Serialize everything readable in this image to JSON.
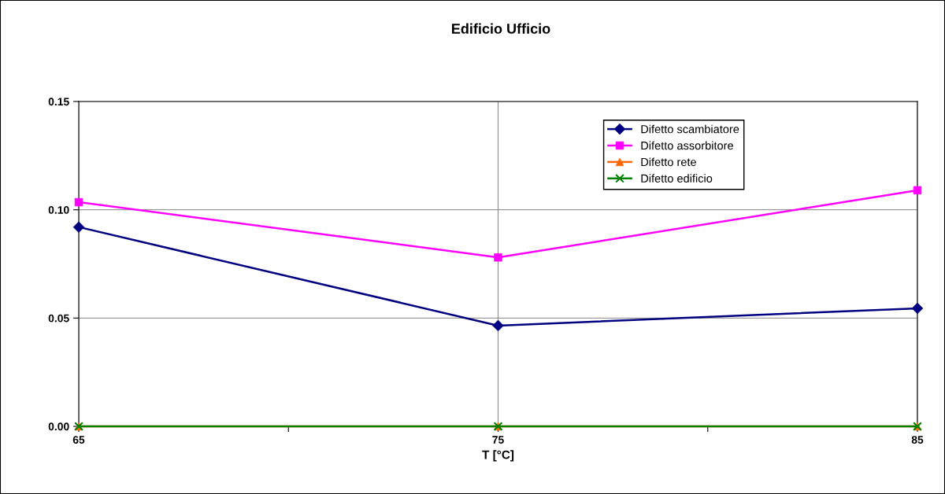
{
  "chart_data": {
    "type": "line",
    "title": "Edificio Ufficio",
    "xlabel": "T [°C]",
    "x": [
      65,
      75,
      85
    ],
    "series": [
      {
        "name": "Difetto scambiatore",
        "color": "#000080",
        "marker": "diamond",
        "values": [
          0.092,
          0.0465,
          0.0545
        ]
      },
      {
        "name": "Difetto assorbitore",
        "color": "#ff00ff",
        "marker": "square",
        "values": [
          0.1035,
          0.078,
          0.109
        ]
      },
      {
        "name": "Difetto rete",
        "color": "#ff6600",
        "marker": "triangle",
        "values": [
          0,
          0,
          0
        ]
      },
      {
        "name": "Difetto edificio",
        "color": "#008000",
        "marker": "cross",
        "values": [
          0,
          0,
          0
        ]
      }
    ],
    "xlim": [
      65,
      85
    ],
    "xticks": [
      65,
      {
        "value": 70,
        "label": null
      },
      75,
      {
        "value": 80,
        "label": null
      },
      85
    ],
    "ylim": [
      0,
      0.15
    ],
    "yticks": [
      {
        "value": 0,
        "label": "0.00"
      },
      {
        "value": 0.05,
        "label": "0.05"
      },
      {
        "value": 0.1,
        "label": "0.10"
      },
      {
        "value": 0.15,
        "label": "0.15"
      }
    ],
    "grid": true,
    "legend": "top right"
  }
}
